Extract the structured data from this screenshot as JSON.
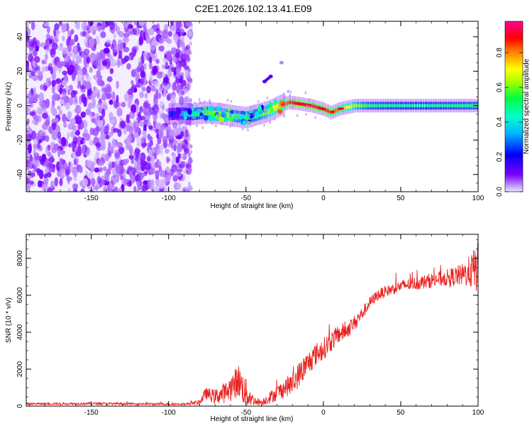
{
  "figure_title": "C2E1.2026.102.13.41.E09",
  "chart_data": [
    {
      "type": "heatmap",
      "title": "C2E1.2026.102.13.41.E09",
      "xlabel": "Height of straight line (km)",
      "ylabel": "Frequency (Hz)",
      "xlim": [
        -192,
        100
      ],
      "ylim": [
        -50,
        49
      ],
      "x_ticks": [
        -150,
        -100,
        -50,
        0,
        50,
        100
      ],
      "y_ticks": [
        -40,
        -20,
        0,
        20,
        40
      ],
      "colorbar": {
        "label": "Normalized spectral amplitude",
        "range": [
          0,
          0.98
        ],
        "ticks": [
          0.0,
          0.2,
          0.4,
          0.6,
          0.8
        ],
        "colormap": [
          "#e8e8ff",
          "#7b00ff",
          "#0000ff",
          "#00e0ff",
          "#00ff80",
          "#80ff00",
          "#ffff00",
          "#ff8000",
          "#ff0000",
          "#ff0080"
        ]
      },
      "noise_region": {
        "x_range": [
          -192,
          -86
        ],
        "freq_range": [
          -50,
          49
        ],
        "level": "low"
      },
      "ridge": {
        "description": "dominant spectral line near 0 Hz",
        "x": [
          -100,
          -92,
          -85,
          -75,
          -65,
          -58,
          -50,
          -42,
          -35,
          -28,
          -22,
          -15,
          -8,
          0,
          5,
          10,
          20,
          30,
          50,
          70,
          90,
          100
        ],
        "freq": [
          -5,
          -4.5,
          -5,
          -4,
          -5,
          -6,
          -7,
          -5,
          -3,
          0,
          2,
          1,
          0,
          -2,
          -4,
          -2,
          0,
          0,
          0,
          0,
          0,
          0
        ],
        "amplitude": [
          0.2,
          0.3,
          0.4,
          0.5,
          0.55,
          0.5,
          0.45,
          0.5,
          0.6,
          0.75,
          0.9,
          0.95,
          0.92,
          0.9,
          0.85,
          0.8,
          0.55,
          0.45,
          0.42,
          0.42,
          0.45,
          0.45
        ]
      },
      "faint_features": [
        {
          "x": [
            -38,
            -34
          ],
          "freq": [
            14,
            17
          ],
          "amplitude": 0.15
        },
        {
          "x": [
            -27
          ],
          "freq": [
            25
          ],
          "amplitude": 0.05
        }
      ]
    },
    {
      "type": "line",
      "xlabel": "Height of straight line (km)",
      "ylabel": "SNR (10 * v/v)",
      "xlim": [
        -192,
        100
      ],
      "ylim": [
        0,
        9300
      ],
      "x_ticks": [
        -150,
        -100,
        -50,
        0,
        50,
        100
      ],
      "y_ticks": [
        0,
        2000,
        4000,
        6000,
        8000
      ],
      "series": [
        {
          "name": "SNR",
          "color": "#e8221e",
          "x": [
            -192,
            -150,
            -100,
            -88,
            -80,
            -76,
            -70,
            -62,
            -55,
            -50,
            -45,
            -40,
            -36,
            -30,
            -25,
            -20,
            -15,
            -10,
            -5,
            0,
            5,
            10,
            15,
            20,
            25,
            30,
            35,
            40,
            50,
            60,
            70,
            80,
            90,
            95,
            100
          ],
          "y": [
            120,
            140,
            110,
            120,
            200,
            700,
            500,
            800,
            1400,
            700,
            300,
            200,
            400,
            700,
            1000,
            1200,
            1800,
            2300,
            2800,
            3100,
            3500,
            3900,
            4100,
            4500,
            5000,
            5600,
            6000,
            6200,
            6500,
            6650,
            6800,
            6950,
            7100,
            7300,
            7500
          ],
          "noise": [
            60,
            70,
            60,
            60,
            150,
            300,
            400,
            600,
            900,
            800,
            250,
            150,
            300,
            400,
            500,
            600,
            700,
            650,
            600,
            600,
            550,
            500,
            450,
            400,
            350,
            300,
            300,
            300,
            300,
            350,
            400,
            450,
            600,
            900,
            1400
          ]
        }
      ]
    }
  ]
}
